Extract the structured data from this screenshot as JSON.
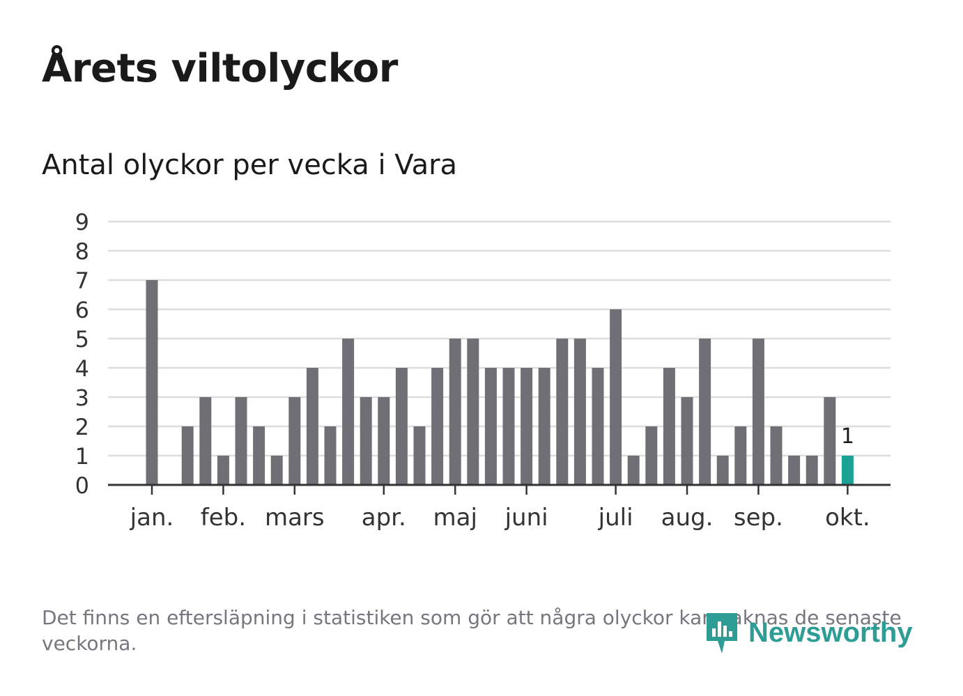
{
  "chart_data": {
    "type": "bar",
    "title": "Årets viltolyckor",
    "subtitle": "Antal olyckor per vecka i Vara",
    "weeks": [
      1,
      2,
      3,
      4,
      5,
      6,
      7,
      8,
      9,
      10,
      11,
      12,
      13,
      14,
      15,
      16,
      17,
      18,
      19,
      20,
      21,
      22,
      23,
      24,
      25,
      26,
      27,
      28,
      29,
      30,
      31,
      32,
      33,
      34,
      35,
      36,
      37,
      38,
      39,
      40
    ],
    "values": [
      7,
      0,
      2,
      3,
      1,
      3,
      2,
      1,
      3,
      4,
      2,
      5,
      3,
      3,
      4,
      2,
      4,
      5,
      5,
      4,
      4,
      4,
      4,
      5,
      5,
      4,
      6,
      1,
      2,
      4,
      3,
      5,
      1,
      2,
      5,
      2,
      1,
      1,
      3,
      1
    ],
    "highlight_index": 39,
    "highlight_label": "1",
    "month_labels": [
      {
        "label": "jan.",
        "week_pos": 1
      },
      {
        "label": "feb.",
        "week_pos": 5
      },
      {
        "label": "mars",
        "week_pos": 9
      },
      {
        "label": "apr.",
        "week_pos": 14
      },
      {
        "label": "maj",
        "week_pos": 18
      },
      {
        "label": "juni",
        "week_pos": 22
      },
      {
        "label": "juli",
        "week_pos": 27
      },
      {
        "label": "aug.",
        "week_pos": 31
      },
      {
        "label": "sep.",
        "week_pos": 35
      },
      {
        "label": "okt.",
        "week_pos": 40
      }
    ],
    "yticks": [
      0,
      1,
      2,
      3,
      4,
      5,
      6,
      7,
      8,
      9
    ],
    "ylim": [
      0,
      9
    ],
    "xlabel": "",
    "ylabel": "",
    "grid": true,
    "legend": "none"
  },
  "colors": {
    "bar": "#706f76",
    "highlight": "#1aa394",
    "grid": "#dddddd",
    "axis": "#333333",
    "text": "#333333",
    "footnote": "#76767d",
    "brand": "#2e9d96"
  },
  "footnote": "Det finns en eftersläpning i statistiken som gör att några olyckor kan saknas de senaste veckorna.",
  "brand": {
    "name": "Newsworthy",
    "icon": "newsworthy-logo-icon"
  }
}
